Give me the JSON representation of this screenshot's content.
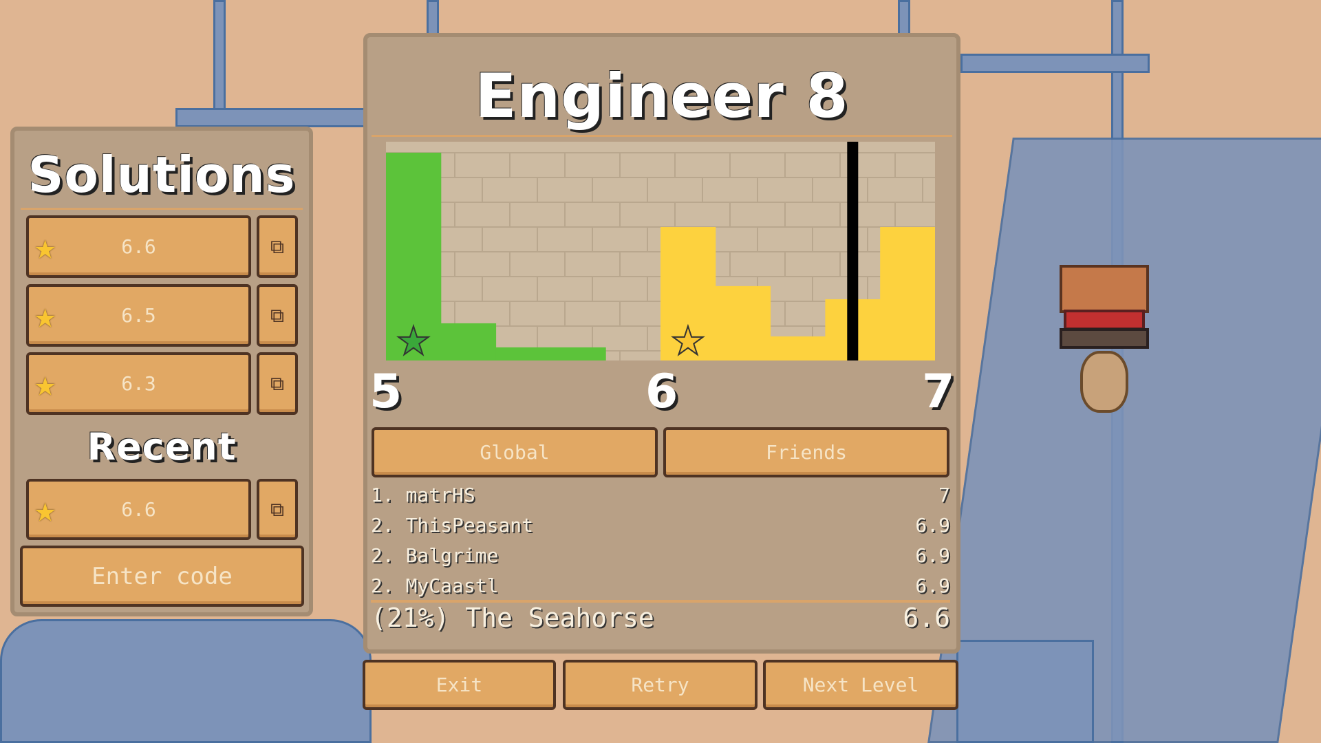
{
  "level_title": "Engineer 8",
  "solutions_panel": {
    "title": "Solutions",
    "items": [
      {
        "score": "6.6",
        "icon": "star-icon"
      },
      {
        "score": "6.5",
        "icon": "star-icon"
      },
      {
        "score": "6.3",
        "icon": "star-icon"
      }
    ],
    "recent_title": "Recent",
    "recent": [
      {
        "score": "6.6",
        "icon": "star-icon"
      }
    ],
    "enter_code_label": "Enter code",
    "copy_icon": "copy-icon"
  },
  "chart_data": {
    "type": "bar",
    "xlim": [
      5,
      7
    ],
    "xticks": [
      "5",
      "6",
      "7"
    ],
    "bin_width": 0.2,
    "bins": [
      {
        "x": 5.0,
        "v": 0.95,
        "color": "#5cc33a"
      },
      {
        "x": 5.2,
        "v": 0.17,
        "color": "#5cc33a"
      },
      {
        "x": 5.4,
        "v": 0.06,
        "color": "#5cc33a"
      },
      {
        "x": 5.6,
        "v": 0.06,
        "color": "#5cc33a"
      },
      {
        "x": 6.0,
        "v": 0.61,
        "color": "#fdd23e"
      },
      {
        "x": 6.2,
        "v": 0.34,
        "color": "#fdd23e"
      },
      {
        "x": 6.4,
        "v": 0.11,
        "color": "#fdd23e"
      },
      {
        "x": 6.6,
        "v": 0.28,
        "color": "#fdd23e"
      },
      {
        "x": 6.8,
        "v": 0.61,
        "color": "#fdd23e"
      }
    ],
    "marker_x": 6.7,
    "stars": [
      {
        "x": 5.1,
        "color": "#3aa83a"
      },
      {
        "x": 6.1,
        "color": "#f9c531"
      }
    ]
  },
  "tabs": {
    "global": "Global",
    "friends": "Friends"
  },
  "leaderboard": [
    {
      "rank": "1.",
      "name": "matrHS",
      "score": "7"
    },
    {
      "rank": "2.",
      "name": "ThisPeasant",
      "score": "6.9"
    },
    {
      "rank": "2.",
      "name": "Balgrime",
      "score": "6.9"
    },
    {
      "rank": "2.",
      "name": "MyCaastl",
      "score": "6.9"
    }
  ],
  "own": {
    "label": "(21%) The Seahorse",
    "score": "6.6"
  },
  "buttons": {
    "exit": "Exit",
    "retry": "Retry",
    "next": "Next Level"
  }
}
